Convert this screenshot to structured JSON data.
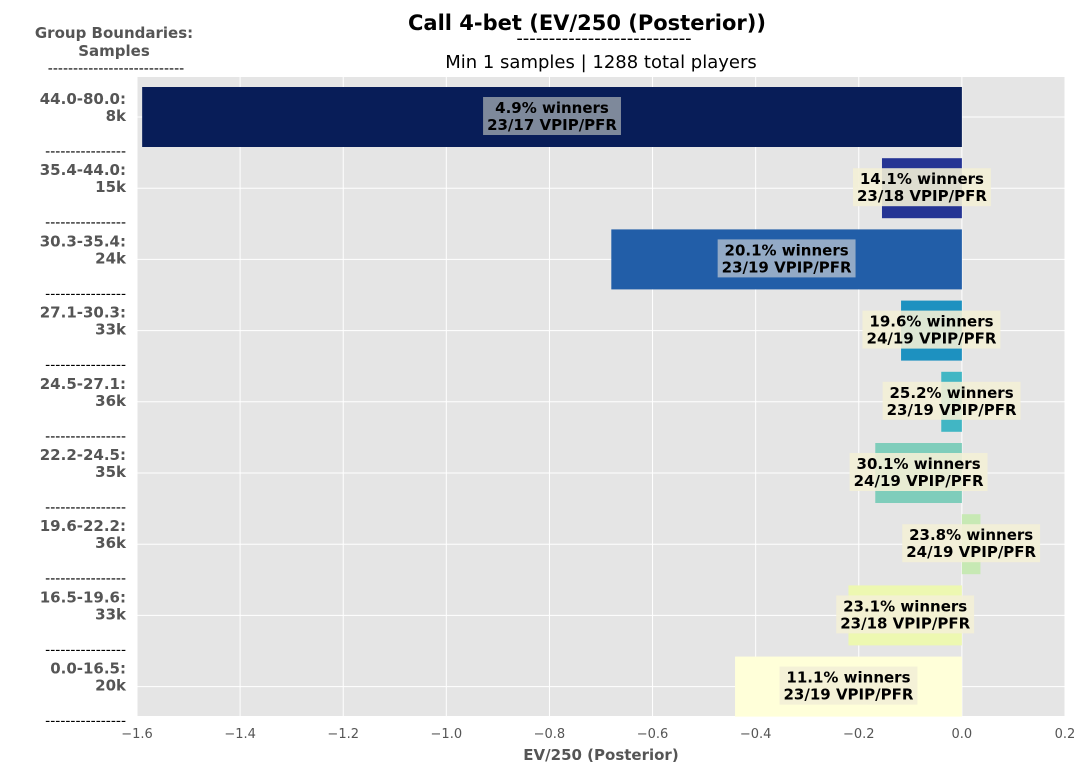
{
  "header": {
    "title": "Call 4-bet (EV/250 (Posterior))",
    "title_rule": "---------------------------",
    "subtitle": "Min 1 samples | 1288 total players",
    "group_header_line1": "Group Boundaries:",
    "group_header_line2": "Samples",
    "group_header_rule": "---------------------------"
  },
  "chart_data": {
    "type": "bar",
    "orientation": "horizontal",
    "title": "Call 4-bet (EV/250 (Posterior))",
    "subtitle": "Min 1 samples | 1288 total players",
    "xlabel": "EV/250 (Posterior)",
    "xlim": [
      -1.6,
      0.2
    ],
    "xticks": [
      "−1.6",
      "−1.4",
      "−1.2",
      "−1.0",
      "−0.8",
      "−0.6",
      "−0.4",
      "−0.2",
      "0.0",
      "0.2"
    ],
    "xtick_values": [
      -1.6,
      -1.4,
      -1.2,
      -1.0,
      -0.8,
      -0.6,
      -0.4,
      -0.2,
      0.0,
      0.2
    ],
    "grid": true,
    "separator": "----------------",
    "categories": [
      {
        "range": "44.0-80.0:",
        "samples": "8k",
        "value": -1.59,
        "line1": "4.9% winners",
        "line2": "23/17 VPIP/PFR",
        "color": "#081d58",
        "label_box": "#8c96a3"
      },
      {
        "range": "35.4-44.0:",
        "samples": "15k",
        "value": -0.155,
        "line1": "14.1% winners",
        "line2": "23/18 VPIP/PFR",
        "color": "#253494",
        "label_box": "#f3f0d6"
      },
      {
        "range": "30.3-35.4:",
        "samples": "24k",
        "value": -0.68,
        "line1": "20.1% winners",
        "line2": "23/19 VPIP/PFR",
        "color": "#225ea8",
        "label_box": "#a0b3c9"
      },
      {
        "range": "27.1-30.3:",
        "samples": "33k",
        "value": -0.118,
        "line1": "19.6% winners",
        "line2": "24/19 VPIP/PFR",
        "color": "#1d91c0",
        "label_box": "#f3f0d6"
      },
      {
        "range": "24.5-27.1:",
        "samples": "36k",
        "value": -0.04,
        "line1": "25.2% winners",
        "line2": "23/19 VPIP/PFR",
        "color": "#41b6c4",
        "label_box": "#f3f0d6"
      },
      {
        "range": "22.2-24.5:",
        "samples": "35k",
        "value": -0.168,
        "line1": "30.1% winners",
        "line2": "24/19 VPIP/PFR",
        "color": "#7fcdbb",
        "label_box": "#f3f0d6"
      },
      {
        "range": "19.6-22.2:",
        "samples": "36k",
        "value": 0.036,
        "line1": "23.8% winners",
        "line2": "24/19 VPIP/PFR",
        "color": "#c7e9b4",
        "label_box": "#f3f0d6"
      },
      {
        "range": "16.5-19.6:",
        "samples": "33k",
        "value": -0.22,
        "line1": "23.1% winners",
        "line2": "23/18 VPIP/PFR",
        "color": "#edf8b1",
        "label_box": "#f3f0d6"
      },
      {
        "range": "0.0-16.5:",
        "samples": "20k",
        "value": -0.44,
        "line1": "11.1% winners",
        "line2": "23/19 VPIP/PFR",
        "color": "#ffffd9",
        "label_box": "#f3f0d6"
      }
    ],
    "colors": {
      "plot_bg": "#e5e5e5",
      "grid": "#ffffff"
    }
  }
}
